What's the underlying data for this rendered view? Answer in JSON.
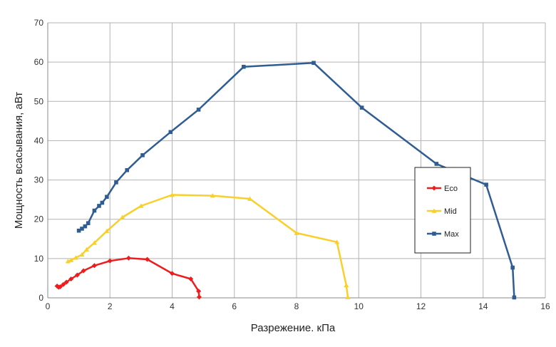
{
  "chart_data": {
    "type": "line",
    "xlabel": "Разрежение. кПа",
    "ylabel": "Мощность всасывания, аВт",
    "xlim": [
      0,
      16
    ],
    "ylim": [
      0,
      70
    ],
    "xticks": [
      "0",
      "2",
      "4",
      "6",
      "8",
      "10",
      "12",
      "14",
      "16"
    ],
    "yticks": [
      "0",
      "10",
      "20",
      "30",
      "40",
      "50",
      "60",
      "70"
    ],
    "grid": true,
    "legend_position": "right",
    "series": [
      {
        "name": "Eco",
        "color": "#ee1c1c",
        "marker": "diamond",
        "points": [
          [
            0.3,
            3.0
          ],
          [
            0.35,
            2.7
          ],
          [
            0.4,
            2.8
          ],
          [
            0.5,
            3.4
          ],
          [
            0.6,
            4.0
          ],
          [
            0.75,
            4.8
          ],
          [
            0.95,
            5.8
          ],
          [
            1.15,
            6.9
          ],
          [
            1.5,
            8.2
          ],
          [
            2.0,
            9.4
          ],
          [
            2.6,
            10.1
          ],
          [
            3.2,
            9.8
          ],
          [
            4.0,
            6.2
          ],
          [
            4.6,
            4.8
          ],
          [
            4.85,
            1.7
          ],
          [
            4.87,
            0.2
          ]
        ]
      },
      {
        "name": "Mid",
        "color": "#f9cf2a",
        "marker": "triangle",
        "points": [
          [
            0.65,
            9.3
          ],
          [
            0.75,
            9.6
          ],
          [
            0.9,
            10.2
          ],
          [
            1.1,
            11.0
          ],
          [
            1.25,
            12.3
          ],
          [
            1.5,
            14.0
          ],
          [
            1.9,
            17.0
          ],
          [
            2.4,
            20.5
          ],
          [
            3.0,
            23.4
          ],
          [
            4.0,
            26.2
          ],
          [
            5.3,
            26.0
          ],
          [
            6.5,
            25.2
          ],
          [
            8.0,
            16.5
          ],
          [
            9.3,
            14.2
          ],
          [
            9.6,
            3.2
          ],
          [
            9.65,
            0.2
          ]
        ]
      },
      {
        "name": "Max",
        "color": "#2f5d93",
        "marker": "square",
        "points": [
          [
            1.0,
            17.1
          ],
          [
            1.1,
            17.6
          ],
          [
            1.2,
            18.2
          ],
          [
            1.3,
            19.0
          ],
          [
            1.5,
            22.2
          ],
          [
            1.65,
            23.4
          ],
          [
            1.75,
            24.2
          ],
          [
            1.9,
            25.7
          ],
          [
            2.2,
            29.4
          ],
          [
            2.55,
            32.5
          ],
          [
            3.05,
            36.3
          ],
          [
            3.95,
            42.2
          ],
          [
            4.85,
            47.9
          ],
          [
            6.3,
            58.8
          ],
          [
            8.55,
            59.8
          ],
          [
            10.1,
            48.4
          ],
          [
            12.5,
            34.1
          ],
          [
            14.1,
            28.8
          ],
          [
            14.95,
            7.7
          ],
          [
            15.0,
            0.1
          ]
        ]
      }
    ]
  }
}
